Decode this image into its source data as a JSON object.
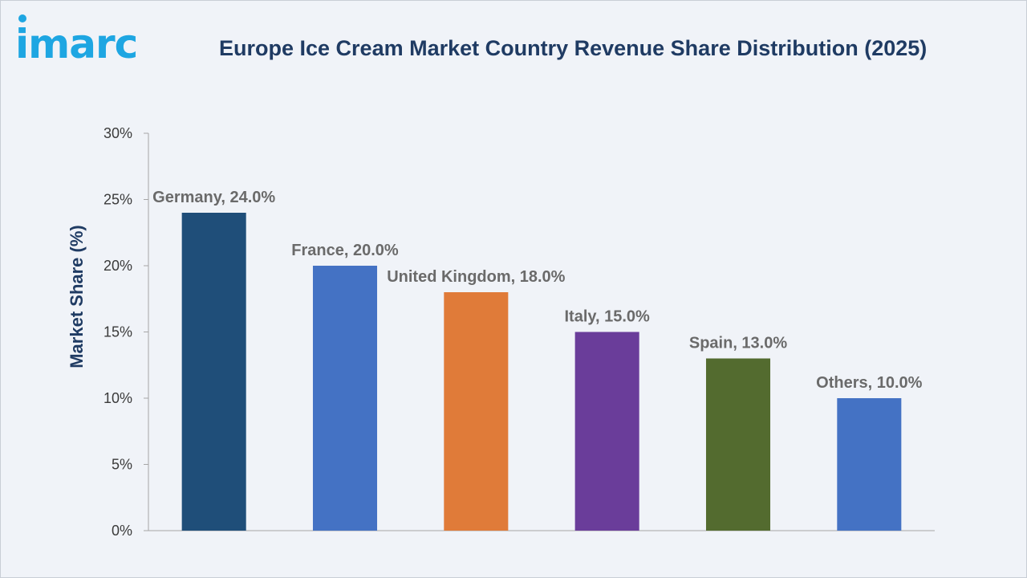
{
  "brand": {
    "logo_text": "imarc",
    "logo_color": "#1ea6e2"
  },
  "chart_data": {
    "type": "bar",
    "title": "Europe Ice Cream Market Country Revenue Share Distribution (2025)",
    "ylabel": "Market Share (%)",
    "xlabel": "",
    "ylim": [
      0,
      30
    ],
    "yticks": [
      0,
      5,
      10,
      15,
      20,
      25,
      30
    ],
    "ytick_suffix": "%",
    "categories": [
      "Germany",
      "France",
      "United Kingdom",
      "Italy",
      "Spain",
      "Others"
    ],
    "values": [
      24.0,
      20.0,
      18.0,
      15.0,
      13.0,
      10.0
    ],
    "colors": [
      "#1f4e79",
      "#4472c4",
      "#e07b39",
      "#6a3d9a",
      "#536b2f",
      "#4472c4"
    ],
    "data_labels": [
      "Germany, 24.0%",
      "France, 20.0%",
      "United Kingdom, 18.0%",
      "Italy, 15.0%",
      "Spain, 13.0%",
      "Others, 10.0%"
    ],
    "grid": false,
    "legend": "none"
  }
}
